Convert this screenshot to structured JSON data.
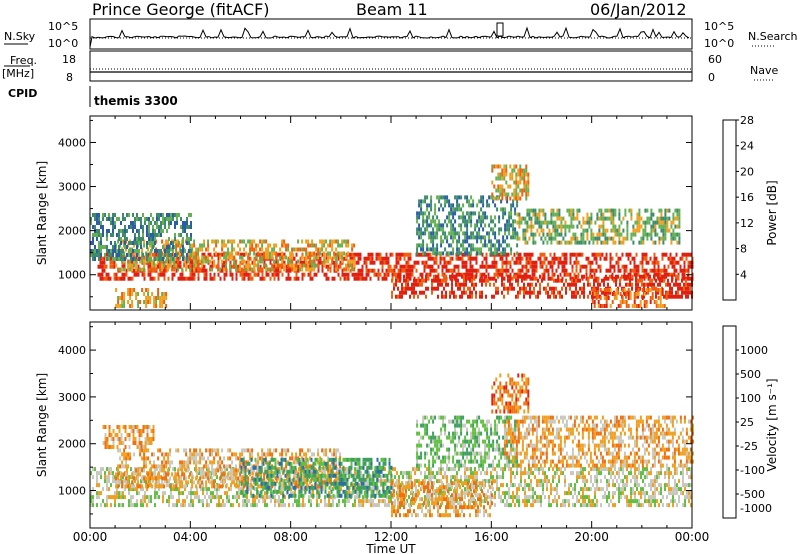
{
  "header": {
    "station": "Prince George (fitACF)",
    "beam": "Beam 11",
    "date": "06/Jan/2012"
  },
  "top_panels": {
    "nsky_label": "N.Sky",
    "nsearch_label": "N.Search",
    "nsky_ticks": [
      "10^5",
      "10^0"
    ],
    "nsearch_ticks": [
      "10^5",
      "10^0"
    ],
    "freq_label": "Freq.",
    "freq_unit": "[MHz]",
    "freq_ticks": [
      "18",
      "8"
    ],
    "nave_label": "Nave",
    "nave_ticks": [
      "60",
      "0"
    ],
    "cpid_label": "CPID",
    "cpid_value": "themis 3300"
  },
  "chart_data": [
    {
      "type": "heatmap",
      "name": "power",
      "ylabel": "Slant Range [km]",
      "yticks": [
        "1000",
        "2000",
        "3000",
        "4000"
      ],
      "ylim": [
        200,
        4600
      ],
      "xlim": [
        0,
        24
      ],
      "colorbar_label": "Power [dB]",
      "colorbar_ticks": [
        "4",
        "8",
        "12",
        "16",
        "20",
        "24",
        "28"
      ],
      "colors": [
        "#1f1fe0",
        "#2c5ea8",
        "#3c8c6c",
        "#66b054",
        "#f0a020",
        "#f06010",
        "#e02010"
      ],
      "bands": [
        {
          "t": [
            0.3,
            24
          ],
          "r": [
            900,
            1500
          ],
          "level": 6
        },
        {
          "t": [
            1.0,
            10.5
          ],
          "r": [
            1100,
            1800
          ],
          "level": 4
        },
        {
          "t": [
            0.0,
            4.0
          ],
          "r": [
            1400,
            2400
          ],
          "level": 2
        },
        {
          "t": [
            12.0,
            24
          ],
          "r": [
            500,
            1000
          ],
          "level": 6
        },
        {
          "t": [
            13.0,
            17.0
          ],
          "r": [
            1500,
            2800
          ],
          "level": 2
        },
        {
          "t": [
            17.0,
            23.5
          ],
          "r": [
            1700,
            2500
          ],
          "level": 3
        },
        {
          "t": [
            20.0,
            23.0
          ],
          "r": [
            300,
            700
          ],
          "level": 5
        },
        {
          "t": [
            1.0,
            3.0
          ],
          "r": [
            300,
            700
          ],
          "level": 4
        },
        {
          "t": [
            16.0,
            17.5
          ],
          "r": [
            2700,
            3500
          ],
          "level": 4
        }
      ]
    },
    {
      "type": "heatmap",
      "name": "velocity",
      "ylabel": "Slant Range [km]",
      "yticks": [
        "1000",
        "2000",
        "3000",
        "4000"
      ],
      "ylim": [
        200,
        4600
      ],
      "xlim": [
        0,
        24
      ],
      "xticks": [
        "00:00",
        "04:00",
        "08:00",
        "12:00",
        "16:00",
        "20:00",
        "00:00"
      ],
      "xlabel": "Time UT",
      "colorbar_label": "Velocity [m s⁻¹]",
      "colorbar_ticks": [
        "1000",
        "500",
        "100",
        "25",
        "-25",
        "-100",
        "-500",
        "-1000"
      ],
      "colors": [
        "#1f3fd0",
        "#2f6f9f",
        "#3f9f5f",
        "#60c040",
        "#c8c8c0",
        "#f0a020",
        "#f07010",
        "#e02010"
      ],
      "bands": [
        {
          "t": [
            0.0,
            24
          ],
          "r": [
            700,
            1500
          ],
          "level": 4
        },
        {
          "t": [
            1.0,
            10.0
          ],
          "r": [
            1100,
            1900
          ],
          "level": 5
        },
        {
          "t": [
            6.0,
            12.0
          ],
          "r": [
            900,
            1700
          ],
          "level": 2
        },
        {
          "t": [
            12.0,
            16.0
          ],
          "r": [
            500,
            1200
          ],
          "level": 5
        },
        {
          "t": [
            13.0,
            17.0
          ],
          "r": [
            1500,
            2600
          ],
          "level": 3
        },
        {
          "t": [
            16.5,
            24
          ],
          "r": [
            1500,
            2600
          ],
          "level": 5
        },
        {
          "t": [
            16.0,
            17.5
          ],
          "r": [
            2700,
            3500
          ],
          "level": 6
        },
        {
          "t": [
            0.5,
            2.5
          ],
          "r": [
            1900,
            2400
          ],
          "level": 5
        }
      ]
    }
  ]
}
